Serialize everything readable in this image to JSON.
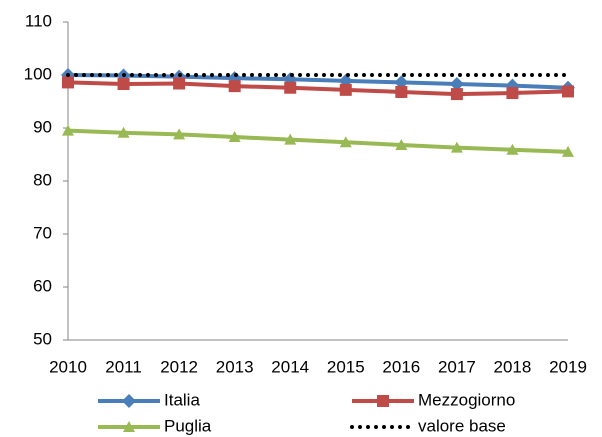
{
  "chart_data": {
    "type": "line",
    "categories": [
      "2010",
      "2011",
      "2012",
      "2013",
      "2014",
      "2015",
      "2016",
      "2017",
      "2018",
      "2019"
    ],
    "series": [
      {
        "name": "Italia",
        "color": "#4a7ebb",
        "marker": "diamond",
        "values": [
          100,
          99.9,
          99.7,
          99.4,
          99.2,
          98.9,
          98.6,
          98.3,
          98.0,
          97.6
        ]
      },
      {
        "name": "Mezzogiorno",
        "color": "#be4b48",
        "marker": "square",
        "values": [
          98.6,
          98.3,
          98.4,
          97.9,
          97.6,
          97.2,
          96.8,
          96.4,
          96.6,
          96.9
        ]
      },
      {
        "name": "Puglia",
        "color": "#98b954",
        "marker": "triangle",
        "values": [
          89.5,
          89.1,
          88.8,
          88.3,
          87.8,
          87.3,
          86.8,
          86.3,
          85.9,
          85.5
        ]
      },
      {
        "name": "valore base",
        "color": "#000000",
        "marker": "none",
        "dash": "dotted",
        "values": [
          100,
          100,
          100,
          100,
          100,
          100,
          100,
          100,
          100,
          100
        ]
      }
    ],
    "ylim": [
      50,
      110
    ],
    "yticks": [
      50,
      60,
      70,
      80,
      90,
      100,
      110
    ],
    "grid": false,
    "legend": "bottom"
  }
}
